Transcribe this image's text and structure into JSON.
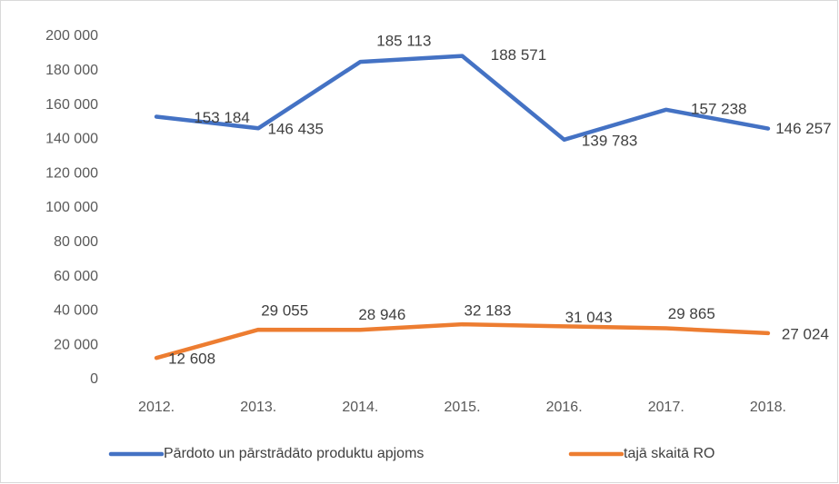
{
  "chart_data": {
    "type": "line",
    "categories": [
      "2012.",
      "2013.",
      "2014.",
      "2015.",
      "2016.",
      "2017.",
      "2018."
    ],
    "series": [
      {
        "name": "Pārdoto un pārstrādāto produktu apjoms",
        "color": "#4472c4",
        "values": [
          153184,
          146435,
          185113,
          188571,
          139783,
          157238,
          146257
        ],
        "value_labels": [
          "153 184",
          "146 435",
          "185 113",
          "188 571",
          "139 783",
          "157 238",
          "146 257"
        ]
      },
      {
        "name": "tajā skaitā RO",
        "color": "#ed7d31",
        "values": [
          12608,
          29055,
          28946,
          32183,
          31043,
          29865,
          27024
        ],
        "value_labels": [
          "12 608",
          "29 055",
          "28 946",
          "32 183",
          "31 043",
          "29 865",
          "27 024"
        ]
      }
    ],
    "ylim": [
      0,
      200000
    ],
    "yticks": [
      0,
      {
        "value": 20000,
        "label": "20 000"
      },
      {
        "value": 40000,
        "label": "40 000"
      },
      {
        "value": 60000,
        "label": "60 000"
      },
      {
        "value": 80000,
        "label": "80 000"
      },
      {
        "value": 100000,
        "label": "100 000"
      },
      {
        "value": 120000,
        "label": "120 000"
      },
      {
        "value": 140000,
        "label": "140 000"
      },
      {
        "value": 160000,
        "label": "160 000"
      },
      {
        "value": 180000,
        "label": "180 000"
      },
      {
        "value": 200000,
        "label": "200 000"
      }
    ],
    "grid": false,
    "legend": "bottom"
  }
}
